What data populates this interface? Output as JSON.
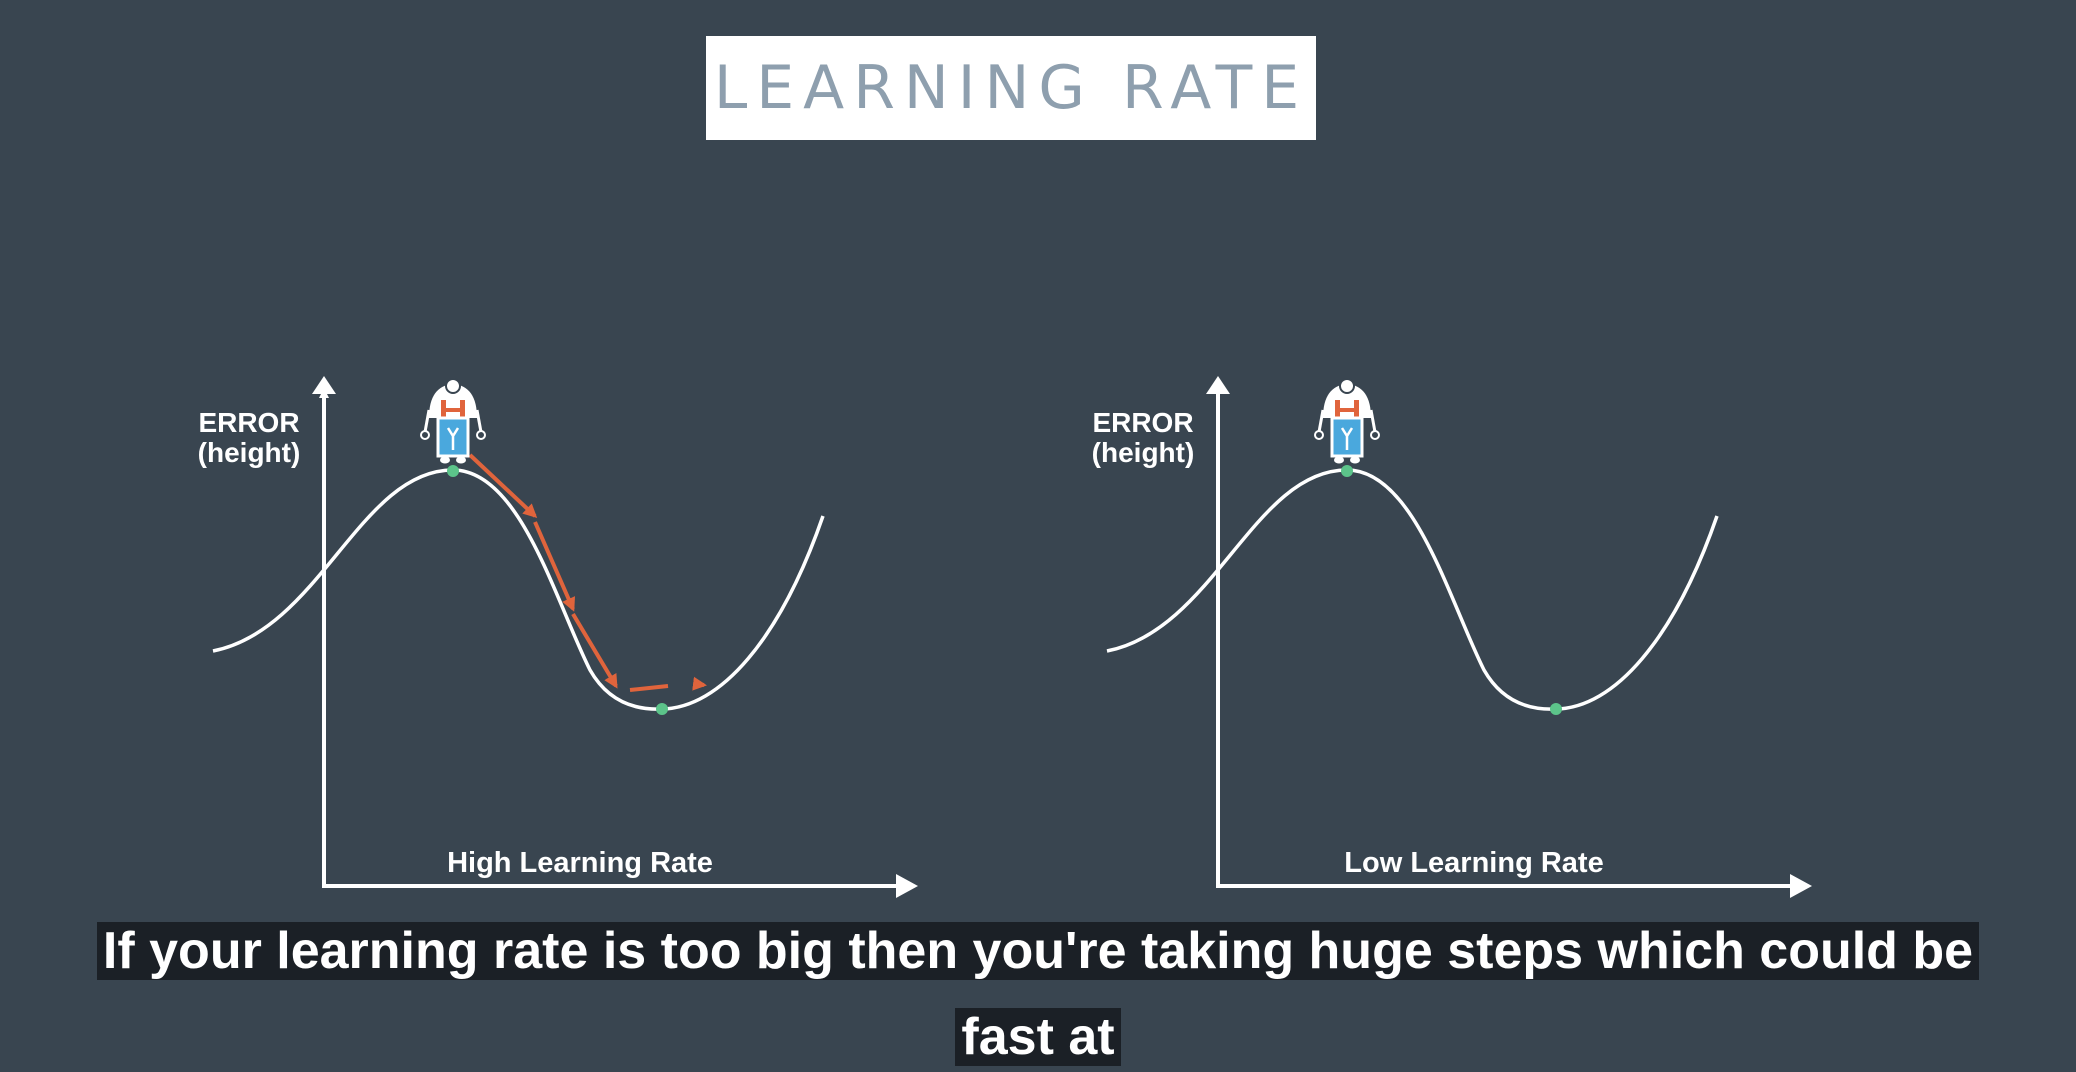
{
  "title": "LEARNING RATE",
  "panels": [
    {
      "axis_label_line1": "ERROR",
      "axis_label_line2": "(height)",
      "x_label": "High Learning Rate"
    },
    {
      "axis_label_line1": "ERROR",
      "axis_label_line2": "(height)",
      "x_label": "Low Learning Rate"
    }
  ],
  "subtitle": {
    "line1": "If your learning rate is too big then you're taking huge steps which could be",
    "line2": "fast at"
  },
  "colors": {
    "background": "#394550",
    "curve": "#ffffff",
    "step_arrows": "#e0643c",
    "extremum_dot": "#5cc48a",
    "robot_body": "#4aa8dd",
    "robot_straps": "#e0643c"
  },
  "icons": [
    "robot-icon"
  ]
}
